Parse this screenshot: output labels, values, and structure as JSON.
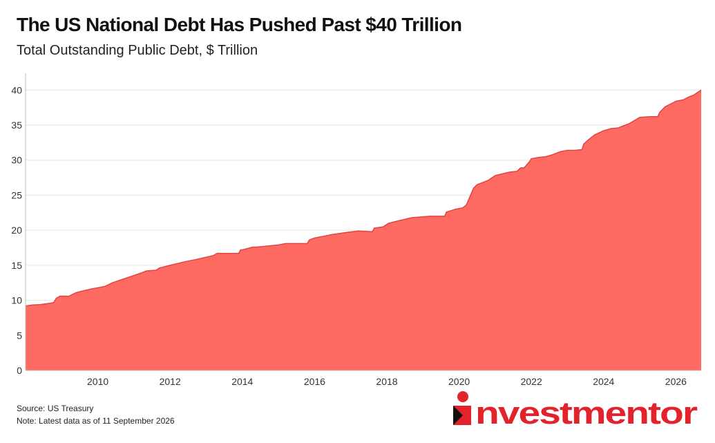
{
  "chart_data": {
    "type": "area",
    "title": "The US National Debt Has Pushed Past $40 Trillion",
    "subtitle": "Total Outstanding Public Debt, $ Trillion",
    "xlim": [
      2008.0,
      2026.7
    ],
    "ylim": [
      0,
      42
    ],
    "x_ticks": [
      2010,
      2012,
      2014,
      2016,
      2018,
      2020,
      2022,
      2024,
      2026
    ],
    "y_ticks": [
      0,
      5,
      10,
      15,
      20,
      25,
      30,
      35,
      40
    ],
    "grid": true,
    "legend": "none",
    "colors": {
      "fill": "#ff6b63",
      "line": "#e2433c",
      "grid": "#e6e6e6"
    },
    "series": [
      {
        "x": [
          2008.0,
          2008.2,
          2008.4,
          2008.7,
          2008.78,
          2008.85,
          2008.95,
          2009.2,
          2009.4,
          2009.8,
          2010.2,
          2010.4,
          2010.8,
          2011.2,
          2011.35,
          2011.6,
          2011.62,
          2011.7,
          2012.0,
          2012.4,
          2012.7,
          2013.2,
          2013.3,
          2013.9,
          2013.95,
          2014.0,
          2014.3,
          2014.4,
          2015.0,
          2015.2,
          2015.8,
          2015.85,
          2016.0,
          2016.3,
          2016.5,
          2016.9,
          2017.2,
          2017.6,
          2017.65,
          2017.9,
          2018.05,
          2018.2,
          2018.7,
          2019.2,
          2019.6,
          2019.65,
          2019.9,
          2020.1,
          2020.2,
          2020.4,
          2020.5,
          2020.8,
          2021.0,
          2021.4,
          2021.6,
          2021.7,
          2021.8,
          2021.95,
          2022.0,
          2022.2,
          2022.4,
          2022.6,
          2022.8,
          2023.0,
          2023.2,
          2023.4,
          2023.45,
          2023.6,
          2023.75,
          2024.0,
          2024.2,
          2024.4,
          2024.7,
          2024.9,
          2025.0,
          2025.3,
          2025.5,
          2025.55,
          2025.7,
          2026.0,
          2026.2,
          2026.35,
          2026.5,
          2026.7
        ],
        "y": [
          9.2,
          9.35,
          9.4,
          9.6,
          9.7,
          10.3,
          10.6,
          10.6,
          11.1,
          11.6,
          12.0,
          12.5,
          13.2,
          13.9,
          14.2,
          14.3,
          14.3,
          14.6,
          15.0,
          15.5,
          15.8,
          16.4,
          16.7,
          16.7,
          17.2,
          17.2,
          17.6,
          17.6,
          17.9,
          18.1,
          18.1,
          18.6,
          18.9,
          19.2,
          19.4,
          19.7,
          19.9,
          19.8,
          20.3,
          20.5,
          21.0,
          21.2,
          21.8,
          22.0,
          22.0,
          22.6,
          23.0,
          23.2,
          23.6,
          26.0,
          26.5,
          27.1,
          27.8,
          28.3,
          28.4,
          28.9,
          28.9,
          29.8,
          30.2,
          30.4,
          30.5,
          30.8,
          31.2,
          31.4,
          31.4,
          31.5,
          32.3,
          33.0,
          33.6,
          34.2,
          34.5,
          34.6,
          35.2,
          35.8,
          36.1,
          36.2,
          36.2,
          36.8,
          37.6,
          38.4,
          38.6,
          39.0,
          39.3,
          40.0
        ]
      }
    ]
  },
  "footer": {
    "source": "Source: US Treasury",
    "note": "Note: Latest data as of 11 September 2026"
  },
  "brand": {
    "wordmark": "investmentor",
    "text_color": "#e3232b",
    "accent_color": "#111111"
  }
}
